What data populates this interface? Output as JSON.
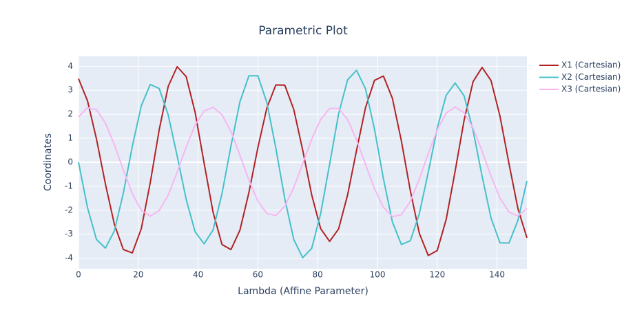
{
  "chart_data": {
    "type": "line",
    "title": "Parametric Plot",
    "x_label": "Lambda (Affine Parameter)",
    "y_label": "Coordinates",
    "x": [
      0,
      3,
      6,
      9,
      12,
      15,
      18,
      21,
      24,
      27,
      30,
      33,
      36,
      39,
      42,
      45,
      48,
      51,
      54,
      57,
      60,
      63,
      66,
      69,
      72,
      75,
      78,
      81,
      84,
      87,
      90,
      93,
      96,
      99,
      102,
      105,
      108,
      111,
      114,
      117,
      120,
      123,
      126,
      129,
      132,
      135,
      138,
      141,
      144,
      147,
      150
    ],
    "series": [
      {
        "name": "X1 (Cartesian)",
        "color": "#b22222",
        "values": [
          3.48,
          2.56,
          0.97,
          -0.91,
          -2.59,
          -3.64,
          -3.78,
          -2.77,
          -0.85,
          1.36,
          3.16,
          3.98,
          3.57,
          2.08,
          -0.03,
          -2.08,
          -3.43,
          -3.64,
          -2.83,
          -1.26,
          0.61,
          2.26,
          3.22,
          3.21,
          2.2,
          0.5,
          -1.36,
          -2.77,
          -3.3,
          -2.78,
          -1.37,
          0.49,
          2.27,
          3.41,
          3.59,
          2.66,
          0.89,
          -1.19,
          -2.96,
          -3.89,
          -3.68,
          -2.38,
          -0.36,
          1.76,
          3.36,
          3.95,
          3.4,
          1.91,
          -0.06,
          -1.94,
          -3.15
        ]
      },
      {
        "name": "X2 (Cartesian)",
        "color": "#46c0c8",
        "values": [
          0,
          -1.89,
          -3.22,
          -3.58,
          -2.86,
          -1.28,
          0.66,
          2.35,
          3.24,
          3.07,
          1.97,
          0.26,
          -1.54,
          -2.9,
          -3.4,
          -2.83,
          -1.31,
          0.68,
          2.52,
          3.6,
          3.6,
          2.49,
          0.59,
          -1.52,
          -3.22,
          -3.98,
          -3.59,
          -2.14,
          -0.08,
          2.01,
          3.43,
          3.83,
          3.06,
          1.38,
          -0.69,
          -2.49,
          -3.43,
          -3.27,
          -2.15,
          -0.41,
          1.42,
          2.79,
          3.3,
          2.76,
          1.31,
          -0.58,
          -2.33,
          -3.36,
          -3.37,
          -2.42,
          -0.78
        ]
      },
      {
        "name": "X3 (Cartesian)",
        "color": "#f7b6f2",
        "values": [
          1.89,
          2.27,
          2.19,
          1.63,
          0.73,
          -0.33,
          -1.31,
          -2.0,
          -2.25,
          -2.01,
          -1.37,
          -0.41,
          0.63,
          1.55,
          2.13,
          2.29,
          1.98,
          1.28,
          0.29,
          -0.75,
          -1.62,
          -2.14,
          -2.22,
          -1.84,
          -1.06,
          -0.06,
          0.96,
          1.78,
          2.24,
          2.24,
          1.78,
          0.94,
          -0.09,
          -1.1,
          -1.88,
          -2.27,
          -2.19,
          -1.63,
          -0.71,
          0.36,
          1.35,
          2.05,
          2.3,
          2.06,
          1.42,
          0.46,
          -0.58,
          -1.5,
          -2.08,
          -2.24,
          -1.93
        ]
      }
    ],
    "xlim": [
      0,
      150
    ],
    "xticks": [
      0,
      20,
      40,
      60,
      80,
      100,
      120,
      140
    ],
    "ylim": [
      -4.44,
      4.41
    ],
    "yticks": [
      -4,
      -3,
      -2,
      -1,
      0,
      1,
      2,
      3,
      4
    ],
    "grid": true,
    "legend": "right"
  }
}
